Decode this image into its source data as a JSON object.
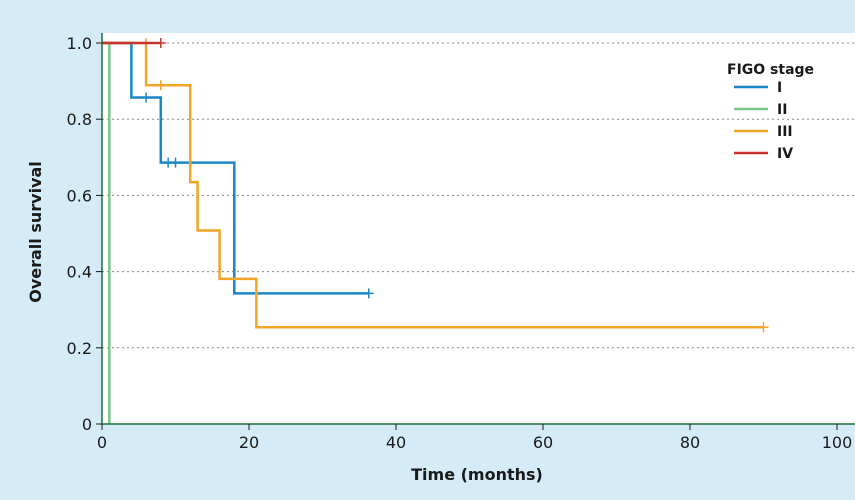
{
  "chart_data": {
    "type": "line",
    "step": true,
    "xlabel": "Time (months)",
    "ylabel": "Overall survival",
    "xlim": [
      0,
      100
    ],
    "ylim": [
      0,
      1.0
    ],
    "x_ticks": [
      0,
      20,
      40,
      60,
      80,
      100
    ],
    "y_ticks": [
      0,
      0.2,
      0.4,
      0.6,
      0.8,
      1.0
    ],
    "x_tick_labels": [
      "0",
      "20",
      "40",
      "60",
      "80",
      "100"
    ],
    "y_tick_labels": [
      "0",
      "0.2",
      "0.4",
      "0.6",
      "0.8",
      "1.0"
    ],
    "grid": "horizontal-dotted",
    "legend": {
      "title": "FIGO stage",
      "placement": "top-right"
    },
    "series": [
      {
        "name": "I",
        "color": "#1a86c6",
        "steps": [
          [
            0,
            1.0
          ],
          [
            4,
            0.857
          ],
          [
            8,
            0.686
          ],
          [
            18,
            0.343
          ],
          [
            36.3,
            0.343
          ]
        ],
        "censored": [
          [
            6,
            0.857
          ],
          [
            9,
            0.686
          ],
          [
            10,
            0.686
          ],
          [
            36.3,
            0.343
          ]
        ]
      },
      {
        "name": "II",
        "color": "#7cc48a",
        "steps": [
          [
            0,
            1.0
          ],
          [
            1,
            0.0
          ]
        ],
        "censored": []
      },
      {
        "name": "III",
        "color": "#f4a428",
        "steps": [
          [
            0,
            1.0
          ],
          [
            6,
            0.889
          ],
          [
            12,
            0.635
          ],
          [
            13,
            0.508
          ],
          [
            16,
            0.381
          ],
          [
            21,
            0.254
          ],
          [
            90,
            0.254
          ]
        ],
        "censored": [
          [
            6,
            1.0
          ],
          [
            8,
            0.889
          ],
          [
            90,
            0.254
          ]
        ]
      },
      {
        "name": "IV",
        "color": "#c8352e",
        "steps": [
          [
            0,
            1.0
          ],
          [
            8,
            1.0
          ]
        ],
        "censored": [
          [
            8,
            1.0
          ]
        ]
      }
    ],
    "axis_color": "#1f6e3a"
  }
}
